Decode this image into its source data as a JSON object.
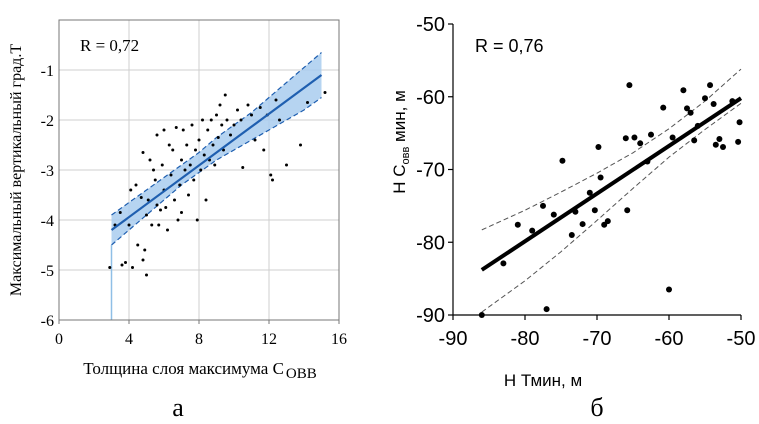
{
  "chart_data": [
    {
      "type": "scatter",
      "panel_label": "а",
      "annotation": "R = 0,72",
      "xlabel": "Толщина слоя максимума С",
      "xlabel_sub": "ОВВ",
      "ylabel": "Максимальный вертикальный град.Т",
      "xlim": [
        0,
        16
      ],
      "ylim": [
        -6,
        0
      ],
      "xticks": [
        "0",
        "4",
        "8",
        "12",
        "16"
      ],
      "xtick_values": [
        0,
        4,
        8,
        12,
        16
      ],
      "yticks": [
        "-6",
        "-5",
        "-4",
        "-3",
        "-2",
        "-1"
      ],
      "ytick_values": [
        -6,
        -5,
        -4,
        -3,
        -2,
        -1
      ],
      "grid": true,
      "colors": {
        "line": "#1f5fb0",
        "band": "#a9cdef",
        "points": "#000000",
        "grid": "#cfcfcf"
      },
      "regression": {
        "x": [
          3,
          15
        ],
        "y": [
          -4.2,
          -1.1
        ]
      },
      "confidence_band": {
        "x": [
          3,
          4,
          5,
          6,
          7,
          8,
          9,
          10,
          11,
          12,
          13,
          14,
          15
        ],
        "lower": [
          -4.5,
          -4.2,
          -3.9,
          -3.6,
          -3.3,
          -3.05,
          -2.8,
          -2.6,
          -2.4,
          -2.2,
          -2.0,
          -1.8,
          -1.55
        ],
        "upper": [
          -3.9,
          -3.65,
          -3.4,
          -3.15,
          -2.9,
          -2.65,
          -2.35,
          -2.1,
          -1.85,
          -1.55,
          -1.25,
          -0.95,
          -0.65
        ]
      },
      "points": [
        [
          2.9,
          -4.95
        ],
        [
          3.2,
          -4.1
        ],
        [
          3.5,
          -3.85
        ],
        [
          3.6,
          -4.9
        ],
        [
          3.8,
          -4.85
        ],
        [
          4.0,
          -4.1
        ],
        [
          4.1,
          -3.4
        ],
        [
          4.2,
          -4.95
        ],
        [
          4.4,
          -3.3
        ],
        [
          4.5,
          -4.5
        ],
        [
          4.7,
          -3.55
        ],
        [
          4.8,
          -2.65
        ],
        [
          4.8,
          -4.8
        ],
        [
          4.9,
          -4.6
        ],
        [
          5.0,
          -5.1
        ],
        [
          5.0,
          -3.9
        ],
        [
          5.1,
          -3.6
        ],
        [
          5.2,
          -2.8
        ],
        [
          5.3,
          -4.1
        ],
        [
          5.4,
          -3.0
        ],
        [
          5.5,
          -3.2
        ],
        [
          5.6,
          -2.3
        ],
        [
          5.6,
          -3.7
        ],
        [
          5.7,
          -4.1
        ],
        [
          5.8,
          -3.8
        ],
        [
          5.9,
          -2.9
        ],
        [
          6.0,
          -2.2
        ],
        [
          6.0,
          -3.4
        ],
        [
          6.1,
          -3.75
        ],
        [
          6.2,
          -4.2
        ],
        [
          6.3,
          -2.5
        ],
        [
          6.4,
          -3.1
        ],
        [
          6.5,
          -2.6
        ],
        [
          6.6,
          -3.6
        ],
        [
          6.7,
          -2.15
        ],
        [
          6.8,
          -4.0
        ],
        [
          6.9,
          -3.3
        ],
        [
          7.0,
          -2.8
        ],
        [
          7.0,
          -3.85
        ],
        [
          7.1,
          -2.2
        ],
        [
          7.2,
          -3.0
        ],
        [
          7.3,
          -2.5
        ],
        [
          7.4,
          -3.5
        ],
        [
          7.5,
          -2.9
        ],
        [
          7.6,
          -2.1
        ],
        [
          7.7,
          -3.2
        ],
        [
          7.8,
          -2.6
        ],
        [
          7.9,
          -4.0
        ],
        [
          8.0,
          -2.4
        ],
        [
          8.1,
          -3.0
        ],
        [
          8.2,
          -2.0
        ],
        [
          8.3,
          -2.7
        ],
        [
          8.4,
          -3.6
        ],
        [
          8.5,
          -2.2
        ],
        [
          8.6,
          -2.8
        ],
        [
          8.7,
          -2.0
        ],
        [
          8.8,
          -2.5
        ],
        [
          8.9,
          -2.9
        ],
        [
          9.0,
          -1.9
        ],
        [
          9.1,
          -2.35
        ],
        [
          9.2,
          -1.7
        ],
        [
          9.3,
          -2.1
        ],
        [
          9.4,
          -2.6
        ],
        [
          9.5,
          -1.5
        ],
        [
          9.6,
          -2.0
        ],
        [
          9.8,
          -2.3
        ],
        [
          10.0,
          -2.1
        ],
        [
          10.2,
          -1.8
        ],
        [
          10.4,
          -2.0
        ],
        [
          10.5,
          -2.95
        ],
        [
          10.8,
          -1.7
        ],
        [
          11.0,
          -1.9
        ],
        [
          11.2,
          -2.4
        ],
        [
          11.5,
          -1.75
        ],
        [
          11.7,
          -2.6
        ],
        [
          11.9,
          -1.9
        ],
        [
          12.1,
          -3.1
        ],
        [
          12.2,
          -3.2
        ],
        [
          12.4,
          -1.6
        ],
        [
          12.6,
          -2.0
        ],
        [
          13.0,
          -2.9
        ],
        [
          13.8,
          -2.5
        ],
        [
          14.2,
          -1.65
        ],
        [
          15.2,
          -1.45
        ]
      ]
    },
    {
      "type": "scatter",
      "panel_label": "б",
      "annotation": "R = 0,76",
      "xlabel": "Н Тмин, м",
      "ylabel_main": "Н С",
      "ylabel_sub": "овв",
      "ylabel_tail": " мин, м",
      "xlim": [
        -90,
        -50
      ],
      "ylim": [
        -90,
        -50
      ],
      "xticks": [
        "-90",
        "-80",
        "-70",
        "-60",
        "-50"
      ],
      "xtick_values": [
        -90,
        -80,
        -70,
        -60,
        -50
      ],
      "yticks": [
        "-90",
        "-80",
        "-70",
        "-60",
        "-50"
      ],
      "ytick_values": [
        -90,
        -80,
        -70,
        -60,
        -50
      ],
      "grid": false,
      "colors": {
        "line": "#000000",
        "band": "#555555",
        "points": "#000000"
      },
      "regression": {
        "x": [
          -86,
          -50
        ],
        "y": [
          -83.8,
          -60.2
        ]
      },
      "confidence_band": {
        "x": [
          -86,
          -80,
          -75,
          -70,
          -65,
          -60,
          -55,
          -50
        ],
        "lower": [
          -89.6,
          -85.3,
          -81.3,
          -77.0,
          -72.6,
          -68.3,
          -64.5,
          -60.9
        ],
        "upper": [
          -78.3,
          -75.6,
          -73.1,
          -70.5,
          -67.7,
          -64.4,
          -60.6,
          -56.2
        ]
      },
      "points": [
        [
          -86.0,
          -90.0
        ],
        [
          -83.0,
          -82.9
        ],
        [
          -81.0,
          -77.6
        ],
        [
          -79.0,
          -78.4
        ],
        [
          -77.5,
          -75.0
        ],
        [
          -77.0,
          -89.2
        ],
        [
          -76.0,
          -76.2
        ],
        [
          -74.8,
          -68.8
        ],
        [
          -73.5,
          -79.0
        ],
        [
          -73.0,
          -75.8
        ],
        [
          -72.0,
          -77.5
        ],
        [
          -71.0,
          -73.2
        ],
        [
          -70.3,
          -75.6
        ],
        [
          -69.8,
          -66.9
        ],
        [
          -69.5,
          -71.1
        ],
        [
          -69.0,
          -77.6
        ],
        [
          -68.5,
          -77.1
        ],
        [
          -66.0,
          -65.7
        ],
        [
          -65.8,
          -75.6
        ],
        [
          -65.5,
          -58.4
        ],
        [
          -64.8,
          -65.6
        ],
        [
          -64.0,
          -66.4
        ],
        [
          -63.0,
          -68.9
        ],
        [
          -62.5,
          -65.2
        ],
        [
          -60.8,
          -61.5
        ],
        [
          -60.0,
          -86.5
        ],
        [
          -59.5,
          -65.6
        ],
        [
          -58.0,
          -59.1
        ],
        [
          -57.5,
          -61.6
        ],
        [
          -57.0,
          -62.2
        ],
        [
          -56.5,
          -66.0
        ],
        [
          -56.0,
          -64.0
        ],
        [
          -55.0,
          -60.2
        ],
        [
          -54.3,
          -58.4
        ],
        [
          -53.8,
          -61.0
        ],
        [
          -53.5,
          -66.6
        ],
        [
          -53.0,
          -65.8
        ],
        [
          -52.5,
          -66.9
        ],
        [
          -51.2,
          -60.6
        ],
        [
          -50.4,
          -66.2
        ],
        [
          -50.2,
          -63.5
        ]
      ]
    }
  ]
}
